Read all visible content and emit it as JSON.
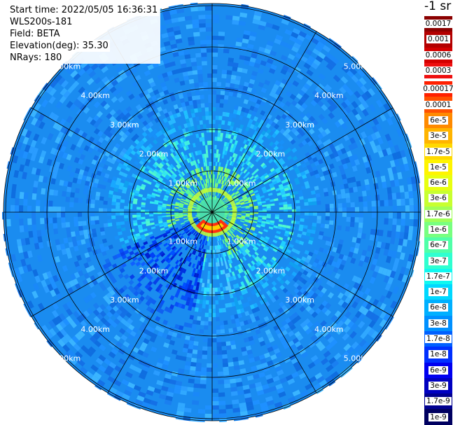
{
  "header": {
    "start_time": "Start time: 2022/05/05 16:36:31",
    "device": "WLS200s-181",
    "field": "Field: BETA",
    "elevation": "Elevation(deg): 35.30",
    "nrays": "NRays: 180"
  },
  "colorbar": {
    "unit": "-1 sr",
    "upper": [
      {
        "label": "0.0017",
        "color": "#8b0000"
      },
      {
        "label": "0.001",
        "color": "#b30000"
      },
      {
        "label": "0.0006",
        "color": "#d40000"
      },
      {
        "label": "0.0003",
        "color": "#ee1010"
      }
    ],
    "lower": [
      {
        "label": "0.00017",
        "color": "#ff2000"
      },
      {
        "label": "0.0001",
        "color": "#ff5000"
      },
      {
        "label": "6e-5",
        "color": "#ff8a00"
      },
      {
        "label": "3e-5",
        "color": "#ffb400"
      },
      {
        "label": "1.7e-5",
        "color": "#ffd800"
      },
      {
        "label": "1e-5",
        "color": "#fff400"
      },
      {
        "label": "6e-6",
        "color": "#e8ff10"
      },
      {
        "label": "3e-6",
        "color": "#c8ff30"
      },
      {
        "label": "1.7e-6",
        "color": "#a0ff58"
      },
      {
        "label": "1e-6",
        "color": "#78ff80"
      },
      {
        "label": "6e-7",
        "color": "#50ffa8"
      },
      {
        "label": "3e-7",
        "color": "#30ffd0"
      },
      {
        "label": "1.7e-7",
        "color": "#10f8f0"
      },
      {
        "label": "1e-7",
        "color": "#00d8ff"
      },
      {
        "label": "6e-8",
        "color": "#00b0ff"
      },
      {
        "label": "3e-8",
        "color": "#0090ff"
      },
      {
        "label": "1.7e-8",
        "color": "#0060ff"
      },
      {
        "label": "1e-8",
        "color": "#0030ff"
      },
      {
        "label": "6e-9",
        "color": "#0000f0"
      },
      {
        "label": "3e-9",
        "color": "#0000c0"
      },
      {
        "label": "1.7e-9",
        "color": "#000090"
      },
      {
        "label": "1e-9",
        "color": "#000060"
      }
    ]
  },
  "range_labels": [
    "1.00km",
    "2.00km",
    "3.00km",
    "4.00km",
    "5.00km"
  ],
  "scan": {
    "ray_count": 180
  }
}
